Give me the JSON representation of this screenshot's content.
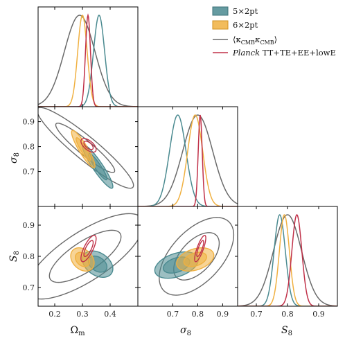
{
  "chart_data": {
    "type": "corner",
    "parameters": [
      {
        "key": "om",
        "label_main": "Ω",
        "label_sub": "m",
        "range": [
          0.14,
          0.5
        ],
        "ticks": [
          0.2,
          0.3,
          0.4
        ]
      },
      {
        "key": "s8",
        "label_main": "σ",
        "label_sub": "8",
        "range": [
          0.56,
          0.96
        ],
        "ticks": [
          0.7,
          0.8,
          0.9
        ]
      },
      {
        "key": "S8",
        "label_main": "S",
        "label_sub": "8",
        "range": [
          0.64,
          0.96
        ],
        "ticks": [
          0.7,
          0.8,
          0.9
        ]
      }
    ],
    "tick_text": {
      "om": [
        "0.2",
        "0.3",
        "0.4"
      ],
      "s8": [
        "0.7",
        "0.8",
        "0.9"
      ],
      "S8": [
        "0.7",
        "0.8",
        "0.9"
      ]
    },
    "series": [
      {
        "name": "5×2pt",
        "key": "5x2",
        "color": "#4a8a90",
        "fill": true,
        "marginals": {
          "om": {
            "mean": 0.36,
            "sd": 0.02
          },
          "s8": {
            "mean": 0.72,
            "sd": 0.033
          },
          "S8": {
            "mean": 0.775,
            "sd": 0.018
          }
        },
        "contours": {
          "om_s8": {
            "cx": 0.355,
            "cy": 0.72,
            "sx": 0.022,
            "sy": 0.035,
            "rho": -0.92
          },
          "om_S8": {
            "cx": 0.355,
            "cy": 0.775,
            "sx": 0.022,
            "sy": 0.017,
            "rho": -0.35
          },
          "s8_S8": {
            "cx": 0.715,
            "cy": 0.772,
            "sx": 0.035,
            "sy": 0.017,
            "rho": 0.4
          }
        }
      },
      {
        "name": "6×2pt",
        "key": "6x2",
        "color": "#f0b040",
        "fill": true,
        "marginals": {
          "om": {
            "mean": 0.3,
            "sd": 0.017
          },
          "s8": {
            "mean": 0.79,
            "sd": 0.03
          },
          "S8": {
            "mean": 0.79,
            "sd": 0.016
          }
        },
        "contours": {
          "om_s8": {
            "cx": 0.303,
            "cy": 0.79,
            "sx": 0.017,
            "sy": 0.03,
            "rho": -0.9
          },
          "om_S8": {
            "cx": 0.3,
            "cy": 0.79,
            "sx": 0.017,
            "sy": 0.015,
            "rho": -0.3
          },
          "s8_S8": {
            "cx": 0.79,
            "cy": 0.79,
            "sx": 0.03,
            "sy": 0.015,
            "rho": 0.35
          }
        }
      },
      {
        "name_pre": "⟨κ",
        "name_sub1": "CMB",
        "name_mid": "κ",
        "name_sub2": "CMB",
        "name_post": "⟩",
        "key": "kk",
        "color": "#6a6a6a",
        "fill": false,
        "marginals": {
          "om": {
            "mean": 0.29,
            "sd": 0.055
          },
          "s8": {
            "mean": 0.8,
            "sd": 0.06
          },
          "S8": {
            "mean": 0.8,
            "sd": 0.045
          }
        },
        "contours": {
          "om_s8": {
            "cx": 0.31,
            "cy": 0.795,
            "sx": 0.07,
            "sy": 0.065,
            "rho": -0.93
          },
          "om_S8": {
            "cx": 0.31,
            "cy": 0.8,
            "sx": 0.085,
            "sy": 0.055,
            "rho": 0.75
          },
          "s8_S8": {
            "cx": 0.795,
            "cy": 0.8,
            "sx": 0.06,
            "sy": 0.05,
            "rho": 0.55
          }
        }
      },
      {
        "name_italic": "Planck",
        "name_rest": " TT+TE+EE+lowE",
        "key": "planck",
        "color": "#c03048",
        "fill": false,
        "marginals": {
          "om": {
            "mean": 0.32,
            "sd": 0.009
          },
          "s8": {
            "mean": 0.81,
            "sd": 0.008
          },
          "S8": {
            "mean": 0.83,
            "sd": 0.016
          }
        },
        "contours": {
          "om_s8": {
            "cx": 0.322,
            "cy": 0.805,
            "sx": 0.011,
            "sy": 0.011,
            "rho": -0.6
          },
          "om_S8": {
            "cx": 0.322,
            "cy": 0.825,
            "sx": 0.011,
            "sy": 0.017,
            "rho": 0.75
          },
          "s8_S8": {
            "cx": 0.81,
            "cy": 0.825,
            "sx": 0.009,
            "sy": 0.017,
            "rho": 0.8
          }
        }
      }
    ],
    "legend_position": "top-right",
    "grid": false
  }
}
